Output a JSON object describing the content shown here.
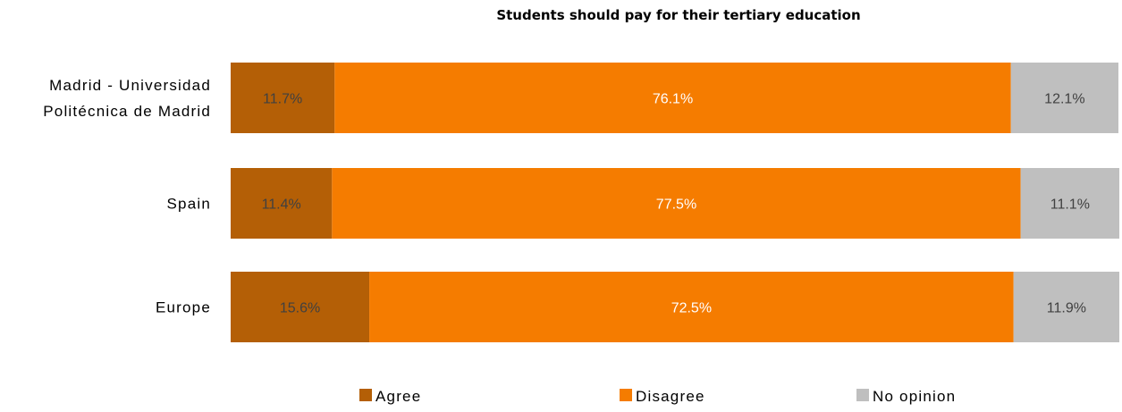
{
  "chart_data": {
    "type": "bar",
    "orientation": "horizontal",
    "stacked": "percent",
    "title": "Students should pay for their tertiary education",
    "categories": [
      [
        "Madrid - Universidad",
        "Politécnica de Madrid"
      ],
      [
        "Spain"
      ],
      [
        "Europe"
      ]
    ],
    "series": [
      {
        "name": "Agree",
        "color": "#B45F06",
        "label_color": "#404040",
        "values": [
          11.7,
          11.4,
          15.6
        ],
        "labels": [
          "11.7%",
          "11.4%",
          "15.6%"
        ]
      },
      {
        "name": "Disagree",
        "color": "#F57C00",
        "label_color": "#FFFFFF",
        "values": [
          76.1,
          77.5,
          72.5
        ],
        "labels": [
          "76.1%",
          "77.5%",
          "72.5%"
        ]
      },
      {
        "name": "No opinion",
        "color": "#BFBFBF",
        "label_color": "#404040",
        "values": [
          12.1,
          11.1,
          11.9
        ],
        "labels": [
          "12.1%",
          "11.1%",
          "11.9%"
        ]
      }
    ],
    "xlim": [
      0,
      100
    ],
    "grid": false,
    "legend": "bottom"
  }
}
